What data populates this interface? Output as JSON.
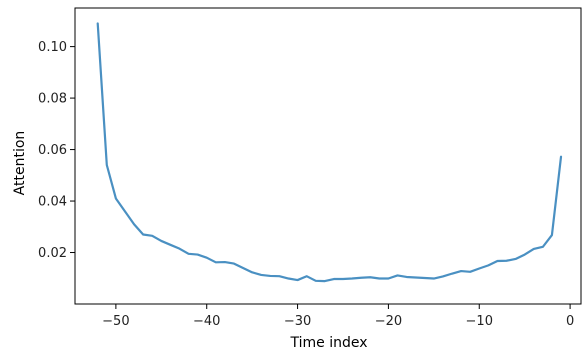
{
  "chart_data": {
    "type": "line",
    "title": "",
    "xlabel": "Time index",
    "ylabel": "Attention",
    "xlim": [
      -54.5,
      1.2
    ],
    "ylim": [
      0.0,
      0.115
    ],
    "x_ticks": [
      -50,
      -40,
      -30,
      -20,
      -10,
      0
    ],
    "x_tick_labels": [
      "−50",
      "−40",
      "−30",
      "−20",
      "−10",
      "0"
    ],
    "y_ticks": [
      0.02,
      0.04,
      0.06,
      0.08,
      0.1
    ],
    "y_tick_labels": [
      "0.02",
      "0.04",
      "0.06",
      "0.08",
      "0.10"
    ],
    "grid": false,
    "legend": "none",
    "series": [
      {
        "color": "#4a90c2",
        "x": [
          -52,
          -51,
          -50,
          -49,
          -48,
          -47,
          -46,
          -45,
          -44,
          -43,
          -42,
          -41,
          -40,
          -39,
          -38,
          -37,
          -36,
          -35,
          -34,
          -33,
          -32,
          -31,
          -30,
          -29,
          -28,
          -27,
          -26,
          -25,
          -24,
          -23,
          -22,
          -21,
          -20,
          -19,
          -18,
          -17,
          -16,
          -15,
          -14,
          -13,
          -12,
          -11,
          -10,
          -9,
          -8,
          -7,
          -6,
          -5,
          -4,
          -3,
          -2,
          -1
        ],
        "y": [
          0.109,
          0.054,
          0.041,
          0.036,
          0.031,
          0.027,
          0.0265,
          0.0245,
          0.023,
          0.0215,
          0.0195,
          0.0192,
          0.018,
          0.0162,
          0.0163,
          0.0157,
          0.014,
          0.0123,
          0.0113,
          0.0109,
          0.0108,
          0.0099,
          0.0093,
          0.0108,
          0.009,
          0.0089,
          0.0097,
          0.0097,
          0.0099,
          0.0102,
          0.0104,
          0.0099,
          0.0099,
          0.0111,
          0.0105,
          0.0103,
          0.0101,
          0.0099,
          0.0107,
          0.0118,
          0.0128,
          0.0125,
          0.0138,
          0.015,
          0.0167,
          0.0168,
          0.0175,
          0.0192,
          0.0214,
          0.0222,
          0.0268,
          0.0572
        ]
      }
    ]
  }
}
